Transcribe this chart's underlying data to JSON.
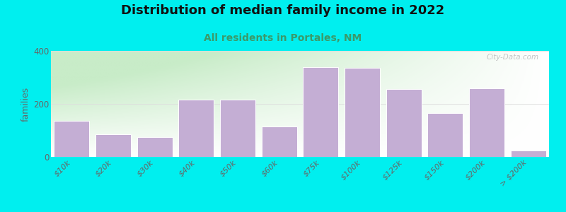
{
  "title": "Distribution of median family income in 2022",
  "subtitle": "All residents in Portales, NM",
  "ylabel": "families",
  "categories": [
    "$10k",
    "$20k",
    "$30k",
    "$40k",
    "$50k",
    "$60k",
    "$75k",
    "$100k",
    "$125k",
    "$150k",
    "$200k",
    "> $200k"
  ],
  "values": [
    135,
    85,
    75,
    215,
    215,
    115,
    340,
    335,
    255,
    165,
    260,
    25
  ],
  "bar_color": "#c4aed4",
  "bar_edge_color": "#ffffff",
  "background_outer": "#00efef",
  "plot_bg_topleft": "#c8ecc8",
  "plot_bg_white": "#ffffff",
  "title_color": "#111111",
  "subtitle_color": "#3a9a6a",
  "ylabel_color": "#666666",
  "tick_color": "#666666",
  "grid_color": "#dddddd",
  "ylim": [
    0,
    400
  ],
  "yticks": [
    0,
    200,
    400
  ],
  "watermark": "City-Data.com",
  "title_fontsize": 13,
  "subtitle_fontsize": 10
}
